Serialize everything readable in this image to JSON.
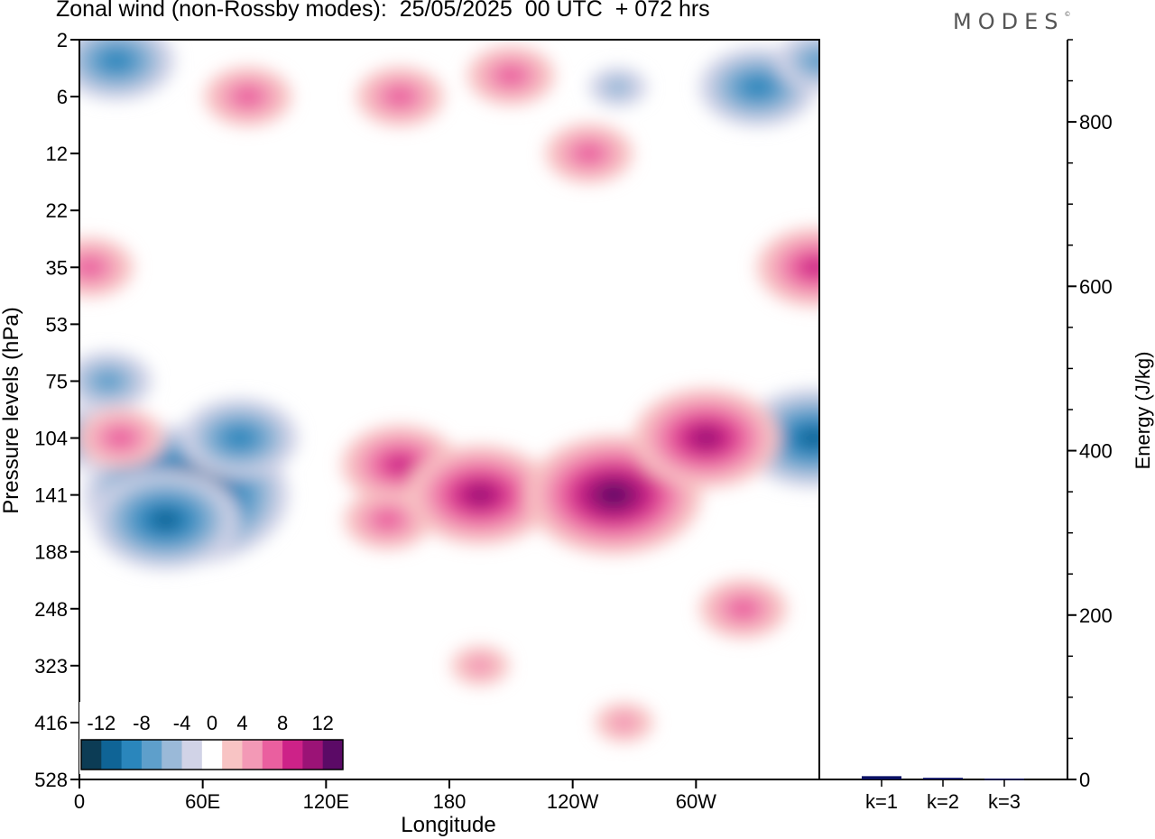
{
  "header": {
    "title": "Zonal wind (non-Rossby modes):  25/05/2025  00 UTC  + 072 hrs",
    "logo": "MODES",
    "logo_mark": "©"
  },
  "chart_data": [
    {
      "type": "heatmap",
      "title": "Zonal wind (non-Rossby modes):  25/05/2025  00 UTC  + 072 hrs",
      "xlabel": "Longitude",
      "ylabel": "Pressure levels (hPa)",
      "x_ticks": [
        "0",
        "60E",
        "120E",
        "180",
        "120W",
        "60W"
      ],
      "x_tick_lon": [
        0,
        60,
        120,
        180,
        240,
        300
      ],
      "xlim": [
        0,
        360
      ],
      "y_ticks": [
        "2",
        "6",
        "12",
        "22",
        "35",
        "53",
        "75",
        "104",
        "141",
        "188",
        "248",
        "323",
        "416",
        "528"
      ],
      "y_inverted": true,
      "colorbar": {
        "labels": [
          "-12",
          "-8",
          "-4",
          "0",
          "4",
          "8",
          "12"
        ],
        "levels": [
          -14,
          -12,
          -10,
          -8,
          -6,
          -4,
          -2,
          2,
          4,
          6,
          8,
          10,
          12,
          14
        ],
        "colors": [
          "#0c3c55",
          "#0f6496",
          "#2a86bc",
          "#5e9fcb",
          "#9ab9d8",
          "#d1d3e7",
          "#ffffff",
          "#f8c4c4",
          "#f399b6",
          "#ea5f9f",
          "#cd2288",
          "#9b1376",
          "#5b0a66"
        ]
      },
      "features": [
        {
          "lon": 52,
          "lev": 141,
          "value": -14
        },
        {
          "lon": 42,
          "lev": 160,
          "value": -10
        },
        {
          "lon": 78,
          "lev": 104,
          "value": -8
        },
        {
          "lon": 14,
          "lev": 75,
          "value": -6
        },
        {
          "lon": 0,
          "lev": 104,
          "value": -5
        },
        {
          "lon": 357,
          "lev": 104,
          "value": -10
        },
        {
          "lon": 18,
          "lev": 3,
          "value": -7
        },
        {
          "lon": 330,
          "lev": 5,
          "value": -7
        },
        {
          "lon": 262,
          "lev": 5,
          "value": -4
        },
        {
          "lon": 360,
          "lev": 3,
          "value": -6
        },
        {
          "lon": 20,
          "lev": 104,
          "value": 6
        },
        {
          "lon": 5,
          "lev": 35,
          "value": 5
        },
        {
          "lon": 156,
          "lev": 120,
          "value": 8
        },
        {
          "lon": 150,
          "lev": 160,
          "value": 5
        },
        {
          "lon": 195,
          "lev": 141,
          "value": 9
        },
        {
          "lon": 260,
          "lev": 141,
          "value": 11
        },
        {
          "lon": 305,
          "lev": 104,
          "value": 9
        },
        {
          "lon": 358,
          "lev": 35,
          "value": 8
        },
        {
          "lon": 248,
          "lev": 12,
          "value": 6
        },
        {
          "lon": 156,
          "lev": 6,
          "value": 6
        },
        {
          "lon": 82,
          "lev": 6,
          "value": 6
        },
        {
          "lon": 210,
          "lev": 4,
          "value": 5
        },
        {
          "lon": 323,
          "lev": 248,
          "value": 6
        },
        {
          "lon": 195,
          "lev": 323,
          "value": 3
        },
        {
          "lon": 265,
          "lev": 416,
          "value": 3
        }
      ]
    },
    {
      "type": "bar",
      "ylabel": "Energy (J/kg)",
      "categories": [
        "k=1",
        "k=2",
        "k=3"
      ],
      "values": [
        4,
        2,
        1
      ],
      "ylim": [
        0,
        900
      ],
      "y_ticks": [
        "0",
        "200",
        "400",
        "600",
        "800"
      ],
      "color": "#0a1064"
    }
  ]
}
